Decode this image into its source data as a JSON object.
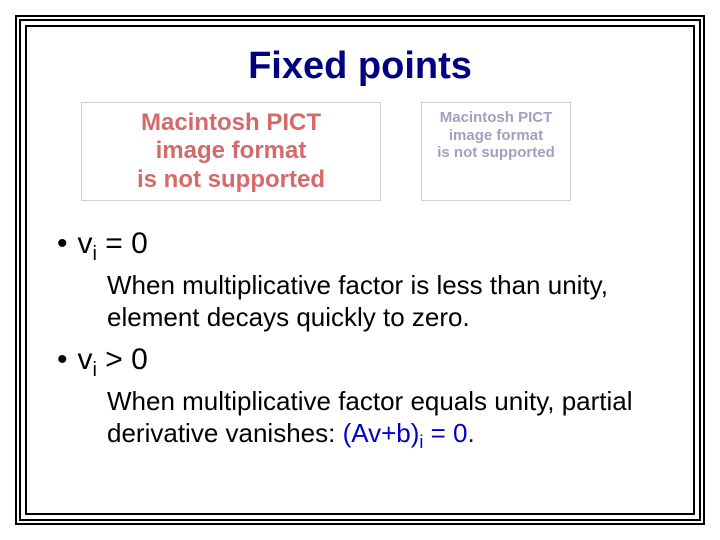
{
  "title": "Fixed points",
  "pict_large": {
    "line1": "Macintosh PICT",
    "line2": "image format",
    "line3": "is not supported"
  },
  "pict_small": {
    "line1": "Macintosh PICT",
    "line2": "image format",
    "line3": "is not supported"
  },
  "bullet1": {
    "var": "v",
    "sub": "i",
    "op": " = 0",
    "desc": "When multiplicative factor is less than unity, element decays quickly to zero."
  },
  "bullet2": {
    "var": "v",
    "sub": "i",
    "op": " > 0",
    "desc_prefix": "When multiplicative factor equals unity, partial derivative vanishes: ",
    "formula_pre": "(Av+b)",
    "formula_sub": "i",
    "formula_post": " = 0."
  },
  "colors": {
    "title": "#000080",
    "pict_large_text": "#d46a6a",
    "pict_small_text": "#a0a0c0",
    "text": "#000000",
    "highlight": "#0000cc",
    "border": "#000000",
    "pict_border": "#d0d0d0",
    "background": "#ffffff"
  }
}
